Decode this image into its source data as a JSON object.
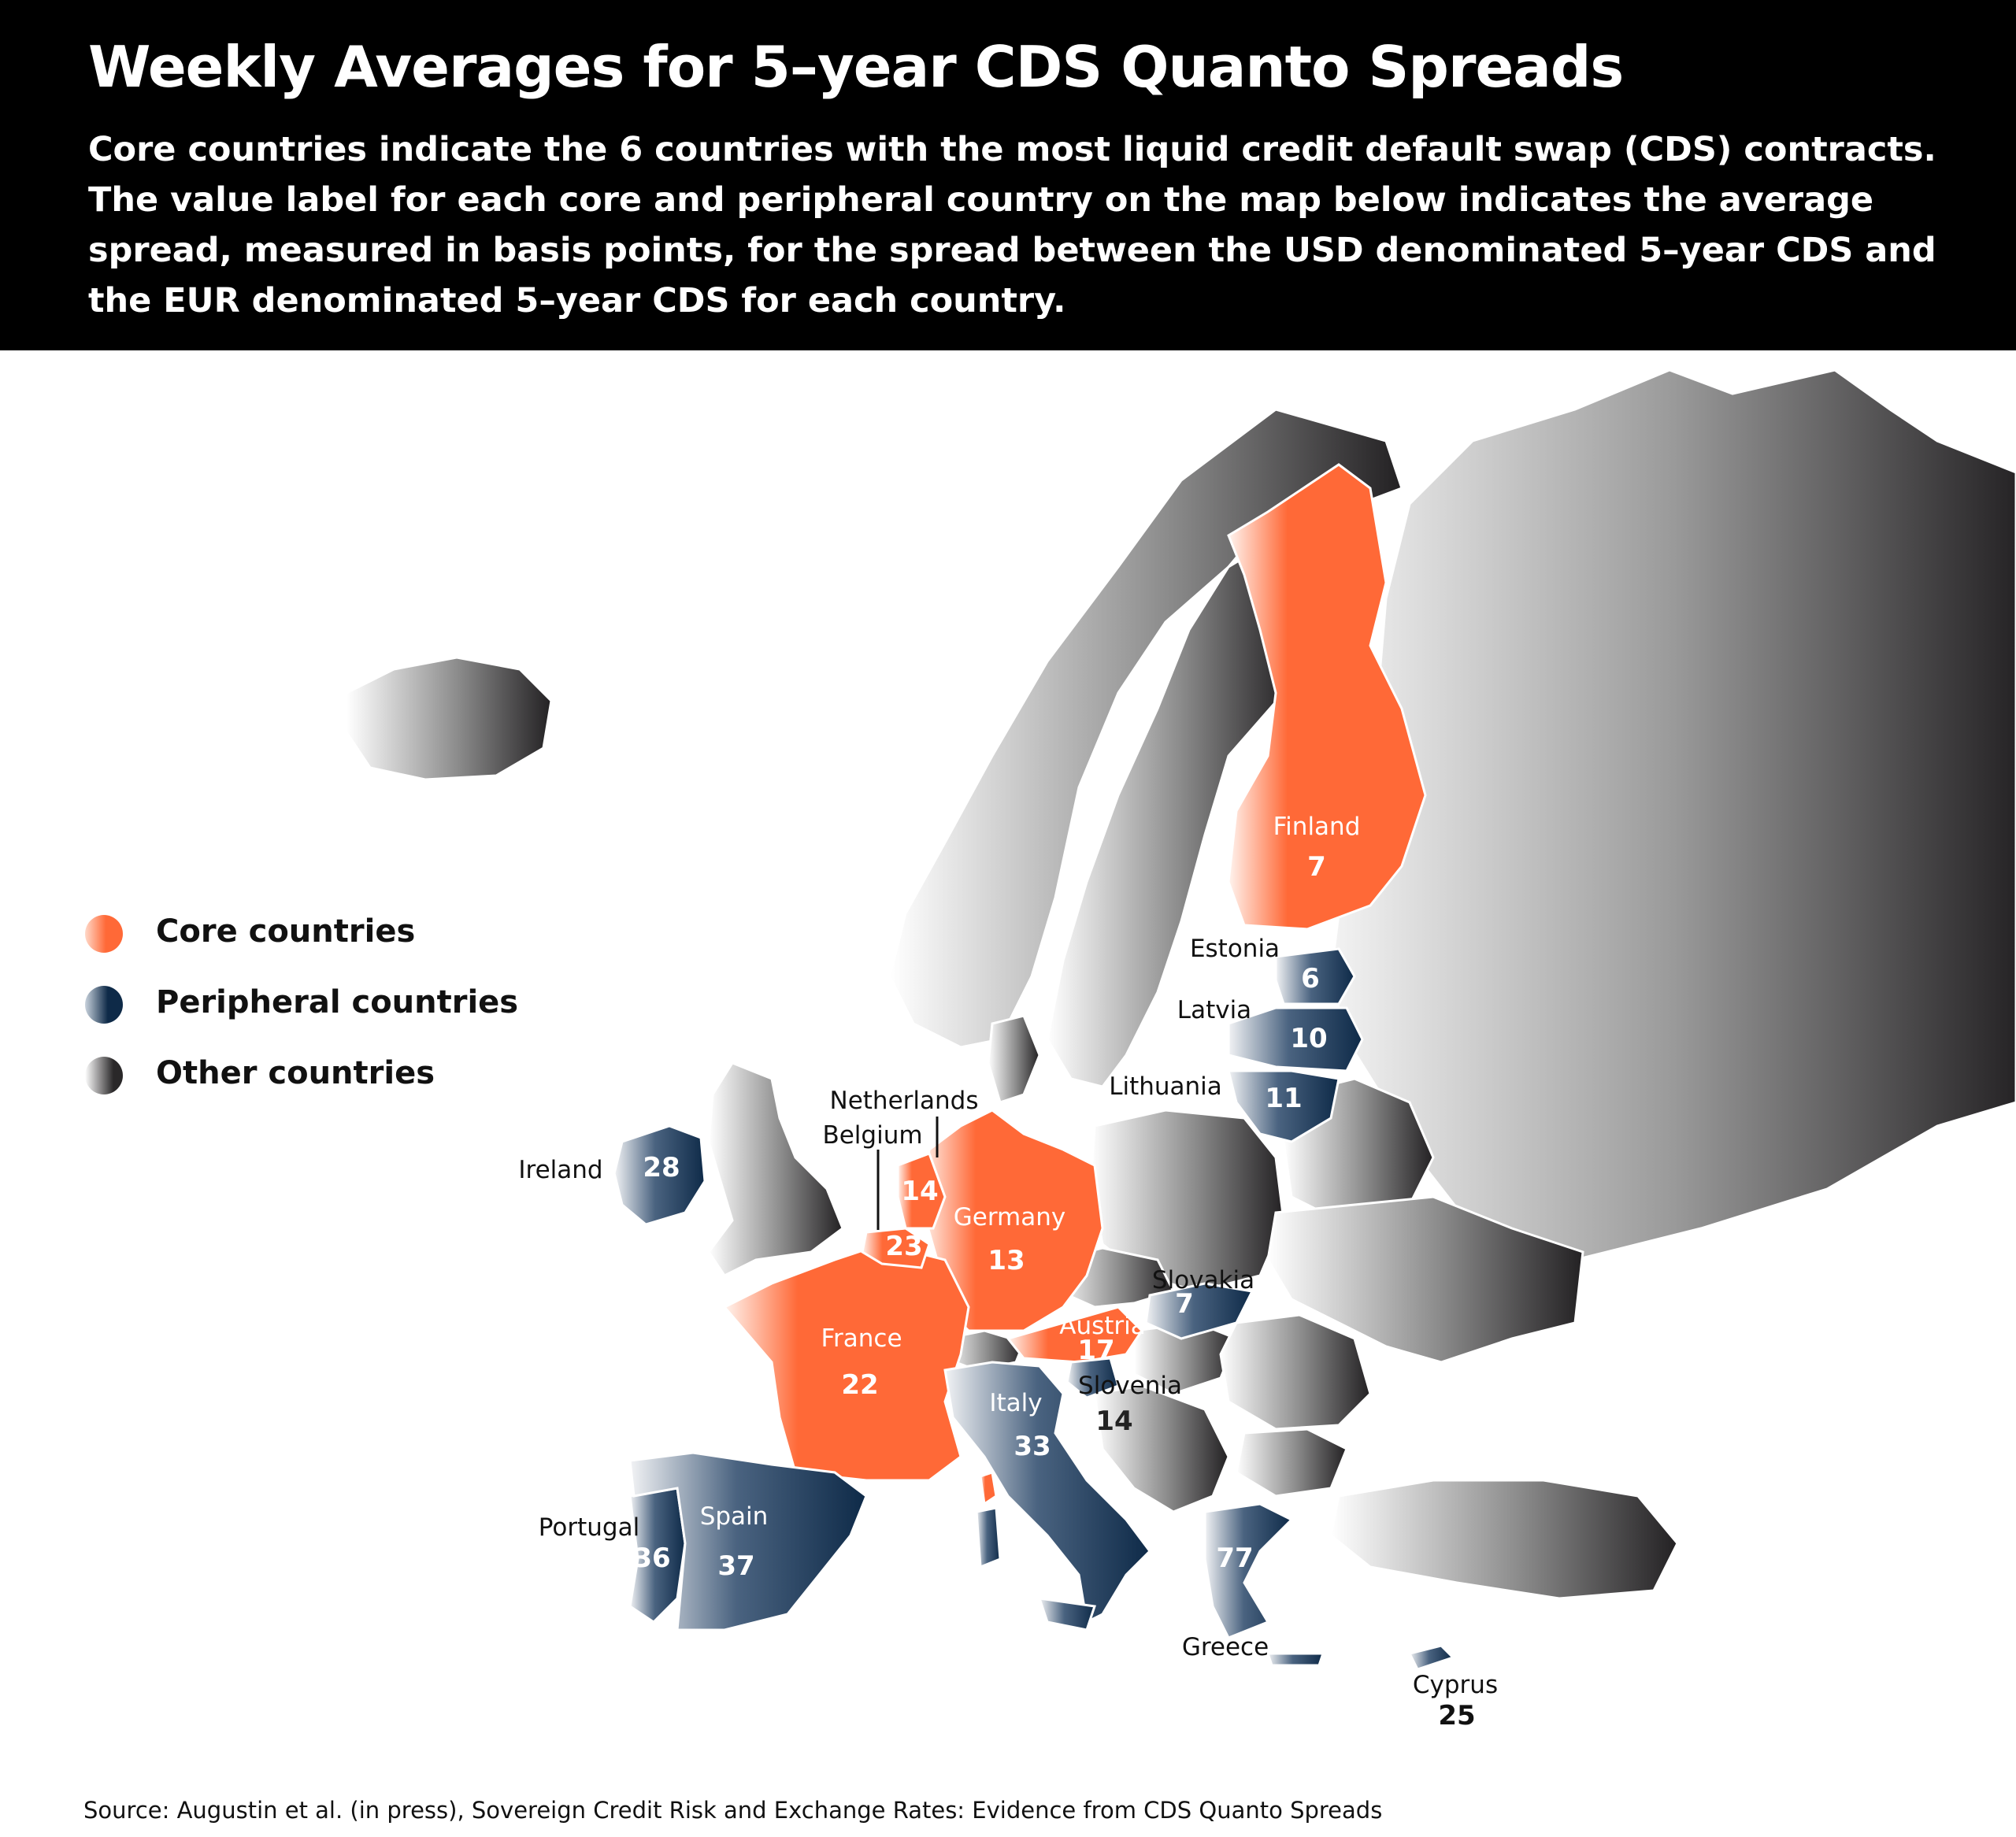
{
  "header": {
    "title": "Weekly Averages for 5–year CDS Quanto Spreads",
    "subtitle": "Core countries indicate the 6 countries with the most liquid credit default swap (CDS) contracts. The value label for each core and peripheral country on the map below indicates the average spread, measured in basis points, for the spread between the USD denominated 5–year CDS and the EUR denominated 5–year CDS for each country."
  },
  "legend": {
    "core": "Core countries",
    "peripheral": "Peripheral countries",
    "other": "Other countries"
  },
  "colors": {
    "core": "#ff6937",
    "peripheral": "#0e2a48",
    "other": "#2a2829"
  },
  "countries": {
    "finland": {
      "name": "Finland",
      "value": "7"
    },
    "estonia": {
      "name": "Estonia",
      "value": "6"
    },
    "latvia": {
      "name": "Latvia",
      "value": "10"
    },
    "lithuania": {
      "name": "Lithuania",
      "value": "11"
    },
    "netherlands": {
      "name": "Netherlands",
      "value": "14"
    },
    "belgium": {
      "name": "Belgium",
      "value": "23"
    },
    "germany": {
      "name": "Germany",
      "value": "13"
    },
    "ireland": {
      "name": "Ireland",
      "value": "28"
    },
    "slovakia": {
      "name": "Slovakia",
      "value": "7"
    },
    "austria": {
      "name": "Austria",
      "value": "17"
    },
    "france": {
      "name": "France",
      "value": "22"
    },
    "slovenia": {
      "name": "Slovenia",
      "value": "14"
    },
    "italy": {
      "name": "Italy",
      "value": "33"
    },
    "portugal": {
      "name": "Portugal",
      "value": "36"
    },
    "spain": {
      "name": "Spain",
      "value": "37"
    },
    "greece": {
      "name": "Greece",
      "value": "77"
    },
    "cyprus": {
      "name": "Cyprus",
      "value": "25"
    }
  },
  "source": "Source: Augustin et al. (in press), Sovereign Credit Risk and Exchange Rates: Evidence from CDS Quanto Spreads"
}
